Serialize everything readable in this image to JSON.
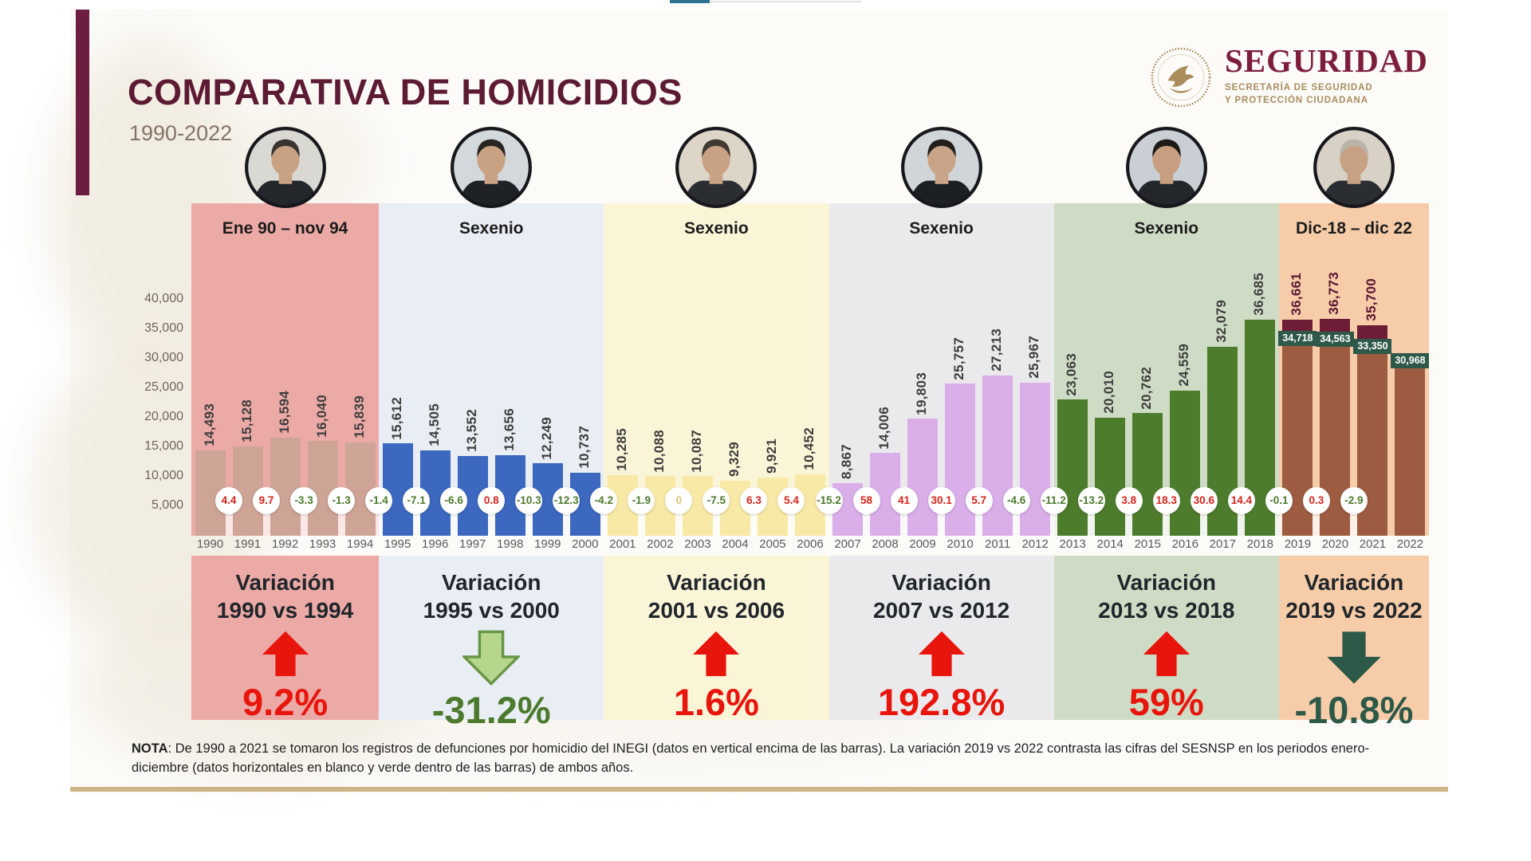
{
  "player": {
    "progress_color": "#2e7392"
  },
  "header": {
    "title": "COMPARATIVA DE HOMICIDIOS",
    "subtitle": "1990-2022"
  },
  "logo": {
    "name": "SEGURIDAD",
    "sub1": "SECRETARÍA DE SEGURIDAD",
    "sub2": "Y PROTECCIÓN CIUDADANA",
    "accent_color": "#7c1d3c",
    "gold_color": "#a98d5f"
  },
  "note": {
    "label": "NOTA",
    "text": ": De 1990 a 2021 se tomaron los registros de defunciones por homicidio del INEGI (datos en vertical encima de las barras). La variación 2019 vs 2022 contrasta las cifras del SESNSP en los periodos enero-diciembre (datos horizontales en blanco y verde dentro de las barras) de ambos años."
  },
  "chart_data": {
    "type": "bar",
    "title": "COMPARATIVA DE HOMICIDIOS",
    "subtitle": "1990-2022",
    "ylim": [
      0,
      45000
    ],
    "y_ticks": [
      40000,
      35000,
      30000,
      25000,
      20000,
      15000,
      10000,
      5000
    ],
    "badge_colors": {
      "positive": "#d6231b",
      "negative": "#4c7a2c",
      "zero": "#dbc878"
    },
    "default_value_label_color": "#3c3c3c",
    "years": [
      {
        "year": 1990,
        "inegi": 14493
      },
      {
        "year": 1991,
        "inegi": 15128,
        "yoy": "4.4"
      },
      {
        "year": 1992,
        "inegi": 16594,
        "yoy": "9.7"
      },
      {
        "year": 1993,
        "inegi": 16040,
        "yoy": "-3.3"
      },
      {
        "year": 1994,
        "inegi": 15839,
        "yoy": "-1.3"
      },
      {
        "year": 1995,
        "inegi": 15612,
        "yoy": "-1.4"
      },
      {
        "year": 1996,
        "inegi": 14505,
        "yoy": "-7.1"
      },
      {
        "year": 1997,
        "inegi": 13552,
        "yoy": "-6.6"
      },
      {
        "year": 1998,
        "inegi": 13656,
        "yoy": "0.8"
      },
      {
        "year": 1999,
        "inegi": 12249,
        "yoy": "-10.3"
      },
      {
        "year": 2000,
        "inegi": 10737,
        "yoy": "-12.3"
      },
      {
        "year": 2001,
        "inegi": 10285,
        "yoy": "-4.2"
      },
      {
        "year": 2002,
        "inegi": 10088,
        "yoy": "-1.9"
      },
      {
        "year": 2003,
        "inegi": 10087,
        "yoy": "0"
      },
      {
        "year": 2004,
        "inegi": 9329,
        "yoy": "-7.5"
      },
      {
        "year": 2005,
        "inegi": 9921,
        "yoy": "6.3"
      },
      {
        "year": 2006,
        "inegi": 10452,
        "yoy": "5.4"
      },
      {
        "year": 2007,
        "inegi": 8867,
        "yoy": "-15.2"
      },
      {
        "year": 2008,
        "inegi": 14006,
        "yoy": "58"
      },
      {
        "year": 2009,
        "inegi": 19803,
        "yoy": "41"
      },
      {
        "year": 2010,
        "inegi": 25757,
        "yoy": "30.1"
      },
      {
        "year": 2011,
        "inegi": 27213,
        "yoy": "5.7"
      },
      {
        "year": 2012,
        "inegi": 25967,
        "yoy": "-4.6"
      },
      {
        "year": 2013,
        "inegi": 23063,
        "yoy": "-11.2"
      },
      {
        "year": 2014,
        "inegi": 20010,
        "yoy": "-13.2"
      },
      {
        "year": 2015,
        "inegi": 20762,
        "yoy": "3.8"
      },
      {
        "year": 2016,
        "inegi": 24559,
        "yoy": "18.3"
      },
      {
        "year": 2017,
        "inegi": 32079,
        "yoy": "30.6"
      },
      {
        "year": 2018,
        "inegi": 36685,
        "yoy": "14.4"
      },
      {
        "year": 2019,
        "inegi": 36661,
        "sesnsp": 34718,
        "yoy": "-0.1"
      },
      {
        "year": 2020,
        "inegi": 36773,
        "sesnsp": 34563,
        "yoy": "0.3"
      },
      {
        "year": 2021,
        "inegi": 35700,
        "sesnsp": 33350,
        "yoy": "-2.9"
      },
      {
        "year": 2022,
        "sesnsp": 30968
      }
    ],
    "panels": [
      {
        "id": "salinas",
        "period_label": "Ene 90 – nov 94",
        "years": [
          1990,
          1994
        ],
        "colors": {
          "bg": "#ecaaa6",
          "bar": "#cda496"
        },
        "avatar": {
          "bg": "#dad8d2",
          "skin": "#c9a183",
          "hair": "#3a3430",
          "suit": "#23262b"
        },
        "variation": {
          "heading": "Variación",
          "range": "1990 vs 1994",
          "value": "9.2%",
          "direction": "up",
          "arrow_fill": "#e8150d",
          "value_color": "#e8150d"
        }
      },
      {
        "id": "zedillo",
        "period_label": "Sexenio",
        "years": [
          1995,
          2000
        ],
        "colors": {
          "bg": "#e9eef4",
          "bar": "#3c68c0"
        },
        "avatar": {
          "bg": "#d3d8dc",
          "skin": "#c9a183",
          "hair": "#28241f",
          "suit": "#1e2126"
        },
        "variation": {
          "heading": "Variación",
          "range": "1995 vs 2000",
          "value": "-31.2%",
          "direction": "down",
          "arrow_fill": "#b5d68c",
          "arrow_stroke": "#679544",
          "value_color": "#4c7a2c"
        }
      },
      {
        "id": "fox",
        "period_label": "Sexenio",
        "years": [
          2001,
          2006
        ],
        "colors": {
          "bg": "#fbf5d8",
          "bar": "#f8e9a6"
        },
        "avatar": {
          "bg": "#ddd6c8",
          "skin": "#c9a183",
          "hair": "#403a33",
          "suit": "#2a2d32"
        },
        "variation": {
          "heading": "Variación",
          "range": "2001 vs 2006",
          "value": "1.6%",
          "direction": "up",
          "arrow_fill": "#e8150d",
          "value_color": "#e8150d"
        }
      },
      {
        "id": "calderon",
        "period_label": "Sexenio",
        "years": [
          2007,
          2012
        ],
        "colors": {
          "bg": "#eaeaed",
          "bar": "#d9aee9"
        },
        "avatar": {
          "bg": "#d0d5d9",
          "skin": "#caa488",
          "hair": "#221f1c",
          "suit": "#1c1f24"
        },
        "variation": {
          "heading": "Variación",
          "range": "2007 vs 2012",
          "value": "192.8%",
          "direction": "up",
          "arrow_fill": "#e8150d",
          "value_color": "#e8150d"
        }
      },
      {
        "id": "pena-nieto",
        "period_label": "Sexenio",
        "years": [
          2013,
          2018
        ],
        "colors": {
          "bg": "#cfdcc5",
          "bar": "#4d7c2d"
        },
        "avatar": {
          "bg": "#c9cfd4",
          "skin": "#c79e80",
          "hair": "#1d1a17",
          "suit": "#23262b"
        },
        "variation": {
          "heading": "Variación",
          "range": "2013 vs 2018",
          "value": "59%",
          "direction": "up",
          "arrow_fill": "#e8150d",
          "value_color": "#e8150d"
        }
      },
      {
        "id": "amlo",
        "period_label": "Dic-18 – dic 22",
        "years": [
          2019,
          2022
        ],
        "colors": {
          "bg": "#f7cda9",
          "bar": "#9d5c41",
          "cap": "#6d1d36",
          "chip": "#2e5948",
          "value_label": "#5a1631"
        },
        "avatar": {
          "bg": "#d8d1c6",
          "skin": "#c7a184",
          "hair": "#b9b4a9",
          "suit": "#2a2d32"
        },
        "variation": {
          "heading": "Variación",
          "range": "2019 vs 2022",
          "value": "-10.8%",
          "direction": "down",
          "arrow_fill": "#2d5948",
          "value_color": "#2d5948"
        }
      }
    ]
  }
}
